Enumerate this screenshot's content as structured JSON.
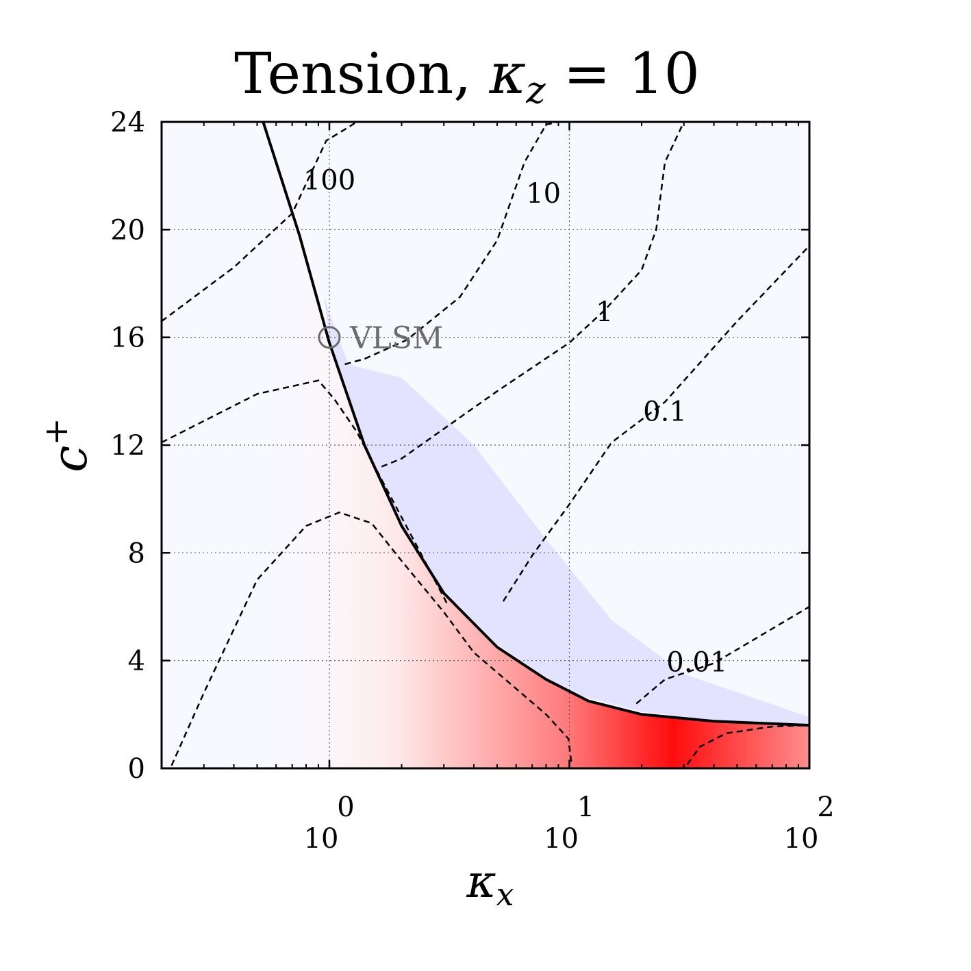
{
  "title": {
    "prefix": "Tension, ",
    "kappa": "κ",
    "sub": "z",
    "suffix": " = 10"
  },
  "chart_data": {
    "type": "heatmap",
    "x_axis": {
      "scale": "log",
      "symbol": "κ",
      "subscript": "x",
      "range": [
        0.2,
        100
      ],
      "ticks": [
        {
          "value": 1,
          "base": "10",
          "exp": "0"
        },
        {
          "value": 10,
          "base": "10",
          "exp": "1"
        },
        {
          "value": 100,
          "base": "10",
          "exp": "2"
        }
      ]
    },
    "y_axis": {
      "scale": "linear",
      "symbol": "c",
      "superscript": "+",
      "range": [
        0,
        24
      ],
      "ticks": [
        "0",
        "4",
        "8",
        "12",
        "16",
        "20",
        "24"
      ]
    },
    "grid": true,
    "colormap": {
      "positive": "#ff0000",
      "negative": "#0000ff",
      "zero": "#ffffff"
    },
    "critical_curve": {
      "style": "solid",
      "points": [
        [
          0.53,
          24
        ],
        [
          0.75,
          19.8
        ],
        [
          1.0,
          15.8
        ],
        [
          1.4,
          12
        ],
        [
          2.0,
          9
        ],
        [
          3.0,
          6.5
        ],
        [
          5.0,
          4.5
        ],
        [
          8.0,
          3.3
        ],
        [
          12.0,
          2.5
        ],
        [
          20.0,
          2.0
        ],
        [
          40.0,
          1.75
        ],
        [
          100.0,
          1.6
        ]
      ]
    },
    "contours": [
      {
        "level": "100",
        "label": "100",
        "points": [
          [
            0.2,
            16.6
          ],
          [
            0.4,
            18.6
          ],
          [
            0.7,
            20.6
          ],
          [
            0.97,
            23.3
          ],
          [
            1.2,
            23.8
          ],
          [
            1.3,
            24
          ]
        ]
      },
      {
        "level": "10",
        "label": "10",
        "points": [
          [
            1.16,
            15.0
          ],
          [
            1.4,
            15.2
          ],
          [
            2.1,
            15.9
          ],
          [
            3.5,
            17.5
          ],
          [
            5.0,
            19.6
          ],
          [
            6.5,
            22.5
          ],
          [
            8.0,
            23.9
          ],
          [
            9.0,
            24
          ]
        ]
      },
      {
        "level": "1",
        "label": "1",
        "points": [
          [
            1.65,
            11.2
          ],
          [
            2.0,
            11.5
          ],
          [
            5.0,
            14.0
          ],
          [
            10.0,
            15.8
          ],
          [
            14.0,
            17.0
          ],
          [
            20.0,
            18.5
          ],
          [
            23.0,
            20.0
          ],
          [
            25.0,
            22.5
          ],
          [
            30.0,
            24
          ]
        ]
      },
      {
        "level": "0.1",
        "label": "0.1",
        "points": [
          [
            5.3,
            6.2
          ],
          [
            7.0,
            7.9
          ],
          [
            10.0,
            9.8
          ],
          [
            15.0,
            12.1
          ],
          [
            25.0,
            13.6
          ],
          [
            50.0,
            16.6
          ],
          [
            100.0,
            19.4
          ]
        ]
      },
      {
        "level": "0.01",
        "label": "0.01",
        "points": [
          [
            19.0,
            2.4
          ],
          [
            25.0,
            3.3
          ],
          [
            40.0,
            3.9
          ],
          [
            100.0,
            6.0
          ]
        ]
      },
      {
        "level": "inner",
        "label": "",
        "points": [
          [
            0.22,
            0.1
          ],
          [
            0.3,
            2.8
          ],
          [
            0.5,
            7.0
          ],
          [
            0.8,
            9.0
          ],
          [
            1.1,
            9.5
          ],
          [
            1.5,
            9.1
          ],
          [
            2.0,
            7.7
          ],
          [
            3.0,
            5.8
          ],
          [
            4.0,
            4.3
          ],
          [
            8.0,
            2.0
          ],
          [
            9.9,
            1.1
          ],
          [
            10.2,
            0.2
          ]
        ]
      },
      {
        "level": "left-band",
        "label": "",
        "points": [
          [
            0.2,
            12.1
          ],
          [
            0.5,
            13.9
          ],
          [
            0.9,
            14.4
          ],
          [
            1.05,
            13.7
          ],
          [
            1.3,
            12.5
          ],
          [
            1.7,
            10.5
          ],
          [
            2.3,
            8.3
          ],
          [
            3.1,
            6.1
          ]
        ]
      },
      {
        "level": "right-low",
        "label": "",
        "points": [
          [
            31.0,
            0.15
          ],
          [
            35.0,
            0.8
          ],
          [
            45.0,
            1.3
          ],
          [
            70.0,
            1.55
          ],
          [
            100.0,
            1.6
          ]
        ]
      }
    ],
    "markers": [
      {
        "label": "VLSM",
        "x": 1.0,
        "y": 16.0
      }
    ]
  }
}
